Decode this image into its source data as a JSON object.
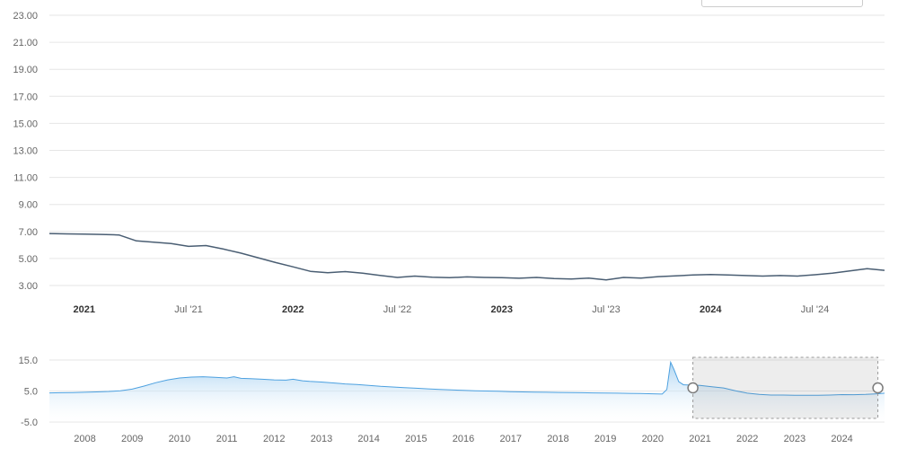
{
  "page": {
    "background": "#ffffff"
  },
  "cropped_control": {
    "note": "partially visible control at top right edge",
    "border_color": "#cccccc"
  },
  "chart_data": [
    {
      "id": "main",
      "type": "line",
      "title": "",
      "xlabel": "",
      "ylabel": "",
      "grid": true,
      "ylim": [
        3,
        23
      ],
      "yticks": [
        3,
        5,
        7,
        9,
        11,
        13,
        15,
        17,
        19,
        21,
        23
      ],
      "ytick_labels": [
        "3.00",
        "5.00",
        "7.00",
        "9.00",
        "11.00",
        "13.00",
        "15.00",
        "17.00",
        "19.00",
        "21.00",
        "23.00"
      ],
      "xticks": [
        {
          "index": 2,
          "label": "2021",
          "bold": true
        },
        {
          "index": 8,
          "label": "Jul '21",
          "bold": false
        },
        {
          "index": 14,
          "label": "2022",
          "bold": true
        },
        {
          "index": 20,
          "label": "Jul '22",
          "bold": false
        },
        {
          "index": 26,
          "label": "2023",
          "bold": true
        },
        {
          "index": 32,
          "label": "Jul '23",
          "bold": false
        },
        {
          "index": 38,
          "label": "2024",
          "bold": true
        },
        {
          "index": 44,
          "label": "Jul '24",
          "bold": false
        }
      ],
      "gridline_color": "#e6e6e6",
      "label_color": "#666666",
      "bold_label_color": "#333333",
      "series": [
        {
          "name": "main-line",
          "color": "#4a5e73",
          "x_unit": "month (Nov 2020 - Nov 2024)",
          "values": [
            6.85,
            6.82,
            6.8,
            6.78,
            6.74,
            6.3,
            6.2,
            6.1,
            5.9,
            5.96,
            5.7,
            5.4,
            5.05,
            4.7,
            4.38,
            4.05,
            3.95,
            4.03,
            3.92,
            3.75,
            3.6,
            3.7,
            3.62,
            3.58,
            3.64,
            3.6,
            3.58,
            3.54,
            3.6,
            3.52,
            3.48,
            3.55,
            3.42,
            3.6,
            3.55,
            3.66,
            3.72,
            3.78,
            3.82,
            3.78,
            3.74,
            3.7,
            3.74,
            3.7,
            3.8,
            3.92,
            4.08,
            4.25,
            4.12
          ]
        }
      ]
    },
    {
      "id": "navigator",
      "type": "area",
      "title": "",
      "grid": true,
      "ylim": [
        -5,
        15
      ],
      "yticks": [
        15,
        5,
        -5
      ],
      "ytick_labels": [
        "15.0",
        "5.0",
        "-5.0"
      ],
      "x_range": [
        2007.25,
        2024.9
      ],
      "xticks": [
        2008,
        2009,
        2010,
        2011,
        2012,
        2013,
        2014,
        2015,
        2016,
        2017,
        2018,
        2019,
        2020,
        2021,
        2022,
        2023,
        2024
      ],
      "gridline_color": "#e6e6e6",
      "label_color": "#666666",
      "series": [
        {
          "name": "navigator-area",
          "color": "#4da1e0",
          "fill_top": "#9fcdf0",
          "fill_bottom": "#ffffff",
          "points": [
            [
              2007.25,
              4.4
            ],
            [
              2007.5,
              4.45
            ],
            [
              2007.75,
              4.5
            ],
            [
              2008,
              4.6
            ],
            [
              2008.25,
              4.7
            ],
            [
              2008.5,
              4.85
            ],
            [
              2008.75,
              5.1
            ],
            [
              2009,
              5.6
            ],
            [
              2009.25,
              6.6
            ],
            [
              2009.5,
              7.7
            ],
            [
              2009.75,
              8.6
            ],
            [
              2010,
              9.2
            ],
            [
              2010.25,
              9.5
            ],
            [
              2010.5,
              9.6
            ],
            [
              2010.75,
              9.4
            ],
            [
              2011,
              9.2
            ],
            [
              2011.15,
              9.6
            ],
            [
              2011.3,
              9.1
            ],
            [
              2011.5,
              9.0
            ],
            [
              2011.75,
              8.8
            ],
            [
              2012,
              8.6
            ],
            [
              2012.25,
              8.5
            ],
            [
              2012.4,
              8.8
            ],
            [
              2012.6,
              8.3
            ],
            [
              2012.75,
              8.1
            ],
            [
              2013,
              7.9
            ],
            [
              2013.25,
              7.6
            ],
            [
              2013.5,
              7.3
            ],
            [
              2013.75,
              7.1
            ],
            [
              2014,
              6.8
            ],
            [
              2014.25,
              6.5
            ],
            [
              2014.5,
              6.3
            ],
            [
              2014.75,
              6.1
            ],
            [
              2015,
              5.9
            ],
            [
              2015.25,
              5.7
            ],
            [
              2015.5,
              5.5
            ],
            [
              2015.75,
              5.35
            ],
            [
              2016,
              5.2
            ],
            [
              2016.25,
              5.1
            ],
            [
              2016.5,
              5.0
            ],
            [
              2016.75,
              4.9
            ],
            [
              2017,
              4.8
            ],
            [
              2017.25,
              4.7
            ],
            [
              2017.5,
              4.65
            ],
            [
              2017.75,
              4.6
            ],
            [
              2018,
              4.55
            ],
            [
              2018.25,
              4.5
            ],
            [
              2018.5,
              4.45
            ],
            [
              2018.75,
              4.4
            ],
            [
              2019,
              4.35
            ],
            [
              2019.25,
              4.3
            ],
            [
              2019.5,
              4.25
            ],
            [
              2019.75,
              4.2
            ],
            [
              2020,
              4.1
            ],
            [
              2020.2,
              4.0
            ],
            [
              2020.3,
              5.5
            ],
            [
              2020.38,
              14.3
            ],
            [
              2020.45,
              12.0
            ],
            [
              2020.55,
              8.0
            ],
            [
              2020.65,
              7.0
            ],
            [
              2020.8,
              6.9
            ],
            [
              2021,
              6.8
            ],
            [
              2021.25,
              6.4
            ],
            [
              2021.5,
              6.0
            ],
            [
              2021.75,
              5.1
            ],
            [
              2022,
              4.3
            ],
            [
              2022.25,
              3.9
            ],
            [
              2022.5,
              3.7
            ],
            [
              2022.75,
              3.7
            ],
            [
              2023,
              3.65
            ],
            [
              2023.25,
              3.6
            ],
            [
              2023.5,
              3.6
            ],
            [
              2023.75,
              3.7
            ],
            [
              2024,
              3.85
            ],
            [
              2024.25,
              3.8
            ],
            [
              2024.5,
              3.9
            ],
            [
              2024.75,
              4.1
            ],
            [
              2024.9,
              4.3
            ]
          ]
        }
      ],
      "selection": {
        "start": 2020.85,
        "end": 2024.76,
        "mask_color": "rgba(110,110,110,0.12)",
        "border_color": "#999999",
        "handle_fill": "#ffffff",
        "handle_stroke": "#7a7a7a"
      }
    }
  ]
}
